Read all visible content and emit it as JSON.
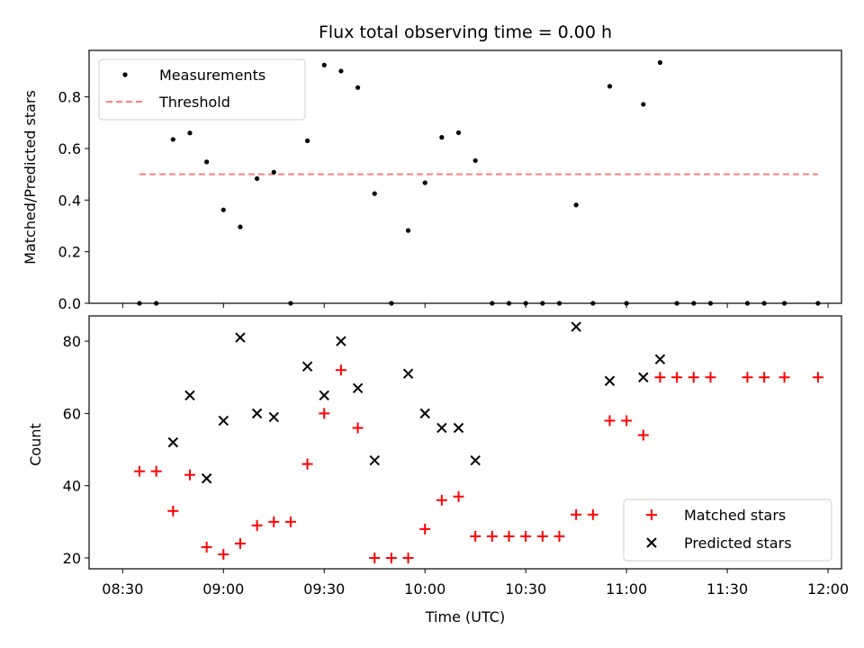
{
  "chart_data": [
    {
      "type": "scatter",
      "title": "Flux total observing time = 0.00 h",
      "xlabel": "",
      "ylabel": "Matched/Predicted stars",
      "xlim": [
        "08:20",
        "12:04"
      ],
      "ylim": [
        0,
        0.98
      ],
      "yticks": [
        0.0,
        0.2,
        0.4,
        0.6,
        0.8
      ],
      "ytick_labels": [
        "0.0",
        "0.2",
        "0.4",
        "0.6",
        "0.8"
      ],
      "grid": false,
      "legend_position": "upper-left",
      "series": [
        {
          "name": "Measurements",
          "marker": "dot",
          "color": "#000000",
          "x": [
            "08:35",
            "08:40",
            "08:45",
            "08:50",
            "08:55",
            "09:00",
            "09:05",
            "09:10",
            "09:15",
            "09:20",
            "09:25",
            "09:30",
            "09:35",
            "09:40",
            "09:45",
            "09:50",
            "09:55",
            "10:00",
            "10:05",
            "10:10",
            "10:15",
            "10:20",
            "10:25",
            "10:30",
            "10:35",
            "10:40",
            "10:45",
            "10:50",
            "10:55",
            "11:00",
            "11:05",
            "11:10",
            "11:15",
            "11:20",
            "11:25",
            "11:36",
            "11:41",
            "11:47",
            "11:57"
          ],
          "y": [
            0.0,
            0.0,
            0.635,
            0.66,
            0.548,
            0.362,
            0.296,
            0.483,
            0.508,
            0.0,
            0.63,
            0.923,
            0.9,
            0.836,
            0.425,
            0.0,
            0.282,
            0.467,
            0.643,
            0.661,
            0.553,
            0.0,
            0.0,
            0.0,
            0.0,
            0.0,
            0.381,
            0.0,
            0.841,
            0.0,
            0.771,
            0.933,
            0.0,
            0.0,
            0.0,
            0.0,
            0.0,
            0.0,
            0.0
          ]
        },
        {
          "name": "Threshold",
          "style": "dashed",
          "color": "#ff7f7f",
          "x": [
            "08:35",
            "11:57"
          ],
          "y": [
            0.5,
            0.5
          ]
        }
      ]
    },
    {
      "type": "scatter",
      "title": "",
      "xlabel": "Time (UTC)",
      "ylabel": "Count",
      "xlim": [
        "08:20",
        "12:04"
      ],
      "ylim": [
        17,
        87
      ],
      "yticks": [
        20,
        40,
        60,
        80
      ],
      "ytick_labels": [
        "20",
        "40",
        "60",
        "80"
      ],
      "xticks": [
        "08:30",
        "09:00",
        "09:30",
        "10:00",
        "10:30",
        "11:00",
        "11:30",
        "12:00"
      ],
      "xtick_labels": [
        "08:30",
        "09:00",
        "09:30",
        "10:00",
        "10:30",
        "11:00",
        "11:30",
        "12:00"
      ],
      "grid": false,
      "legend_position": "lower-right",
      "series": [
        {
          "name": "Matched stars",
          "marker": "plus",
          "color": "#ff0000",
          "x": [
            "08:35",
            "08:40",
            "08:45",
            "08:50",
            "08:55",
            "09:00",
            "09:05",
            "09:10",
            "09:15",
            "09:20",
            "09:25",
            "09:30",
            "09:35",
            "09:40",
            "09:45",
            "09:50",
            "09:55",
            "10:00",
            "10:05",
            "10:10",
            "10:15",
            "10:20",
            "10:25",
            "10:30",
            "10:35",
            "10:40",
            "10:45",
            "10:50",
            "10:55",
            "11:00",
            "11:05",
            "11:10",
            "11:15",
            "11:20",
            "11:25",
            "11:36",
            "11:41",
            "11:47",
            "11:57"
          ],
          "y": [
            44,
            44,
            33,
            43,
            23,
            21,
            24,
            29,
            30,
            30,
            46,
            60,
            72,
            56,
            20,
            20,
            20,
            28,
            36,
            37,
            26,
            26,
            26,
            26,
            26,
            26,
            32,
            32,
            58,
            58,
            54,
            70,
            70,
            70,
            70,
            70,
            70,
            70,
            70
          ]
        },
        {
          "name": "Predicted stars",
          "marker": "x",
          "color": "#000000",
          "x": [
            "08:45",
            "08:50",
            "08:55",
            "09:00",
            "09:05",
            "09:10",
            "09:15",
            "09:25",
            "09:30",
            "09:35",
            "09:40",
            "09:45",
            "09:55",
            "10:00",
            "10:05",
            "10:10",
            "10:15",
            "10:45",
            "10:55",
            "11:05",
            "11:10"
          ],
          "y": [
            52,
            65,
            42,
            58,
            81,
            60,
            59,
            73,
            65,
            80,
            67,
            47,
            71,
            60,
            56,
            56,
            47,
            84,
            69,
            70,
            75
          ]
        }
      ]
    }
  ]
}
